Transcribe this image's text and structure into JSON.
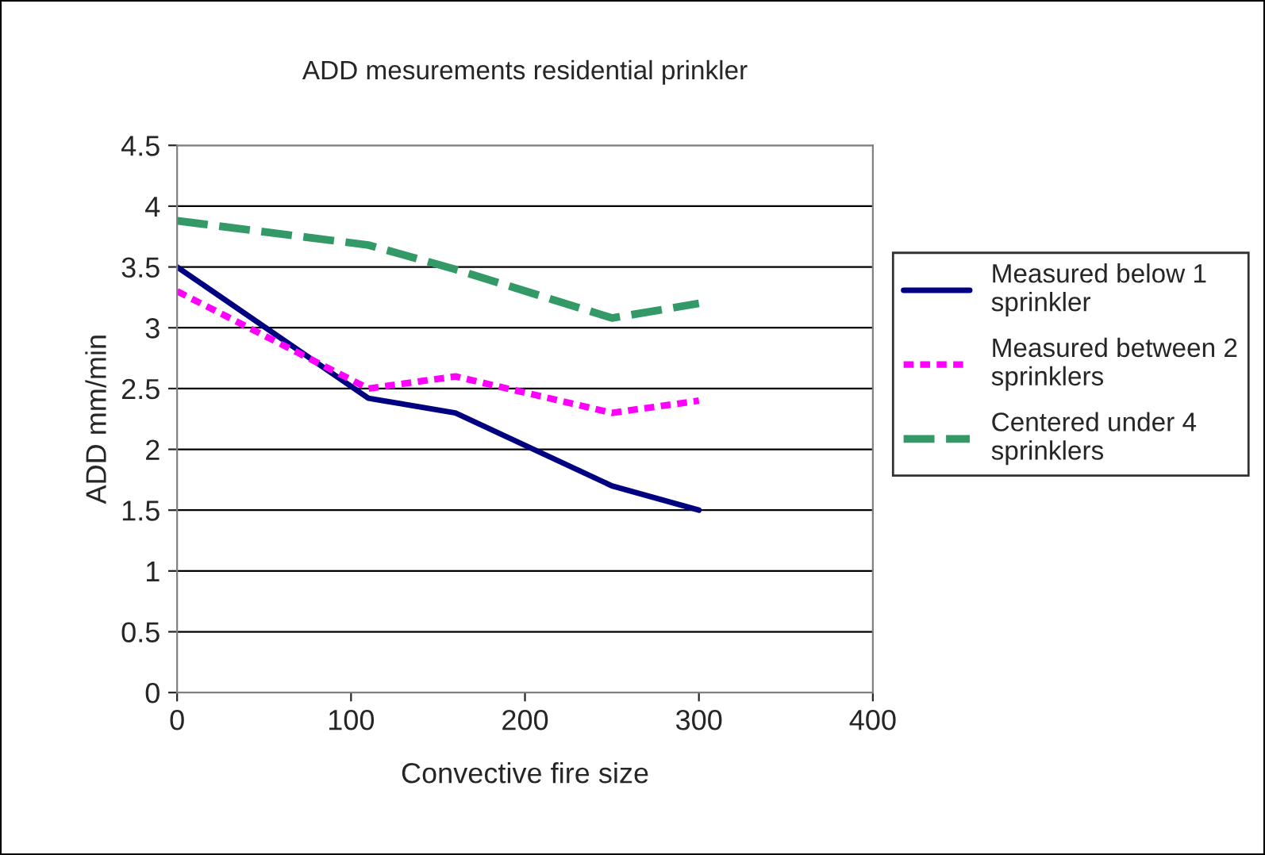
{
  "chart_data": {
    "type": "line",
    "title": "ADD mesurements residential prinkler",
    "xlabel": "Convective fire size",
    "ylabel": "ADD mm/min",
    "x": [
      0,
      110,
      160,
      250,
      300
    ],
    "series": [
      {
        "name": "Measured below 1\nsprinkler",
        "color": "#000080",
        "values": [
          3.5,
          2.42,
          2.3,
          1.7,
          1.5
        ],
        "line_style": "solid"
      },
      {
        "name": "Measured between 2\nsprinklers",
        "color": "#ff00ff",
        "values": [
          3.3,
          2.5,
          2.6,
          2.3,
          2.4
        ],
        "line_style": "dotted"
      },
      {
        "name": "Centered under 4\nsprinklers",
        "color": "#339966",
        "values": [
          3.88,
          3.68,
          3.48,
          3.08,
          3.2
        ],
        "line_style": "dashed"
      }
    ],
    "xlim": [
      0,
      400
    ],
    "xticks": [
      0,
      100,
      200,
      300,
      400
    ],
    "ylim": [
      0,
      4.5
    ],
    "yticks": [
      0,
      0.5,
      1,
      1.5,
      2,
      2.5,
      3,
      3.5,
      4,
      4.5
    ],
    "grid": "y",
    "legend": "right",
    "marker": "none"
  }
}
